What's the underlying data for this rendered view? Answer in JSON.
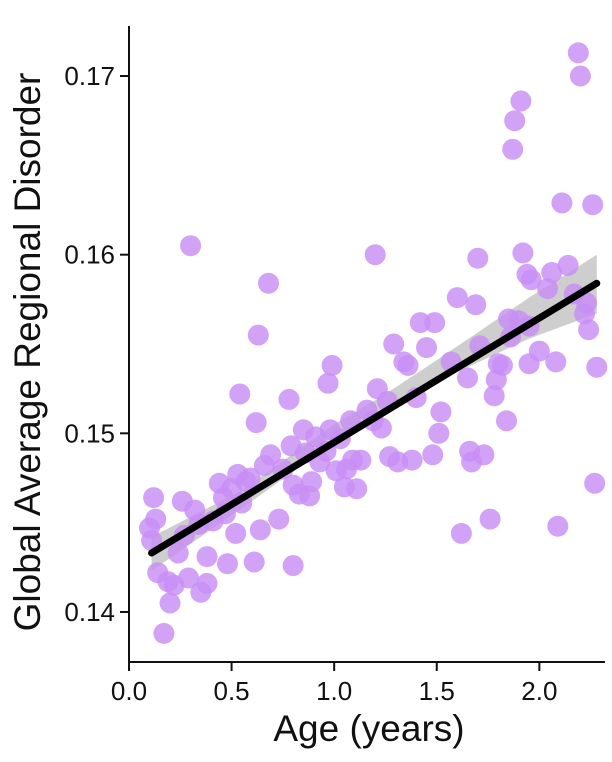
{
  "chart_data": {
    "type": "scatter",
    "xlabel": "Age (years)",
    "ylabel": "Global Average Regional Disorder",
    "xlim": [
      0.0,
      2.32
    ],
    "ylim": [
      0.1372,
      0.1728
    ],
    "x_ticks": [
      0.0,
      0.5,
      1.0,
      1.5,
      2.0
    ],
    "x_tick_labels": [
      "0.0",
      "0.5",
      "1.0",
      "1.5",
      "2.0"
    ],
    "y_ticks": [
      0.14,
      0.15,
      0.16,
      0.17
    ],
    "y_tick_labels": [
      "0.14",
      "0.15",
      "0.16",
      "0.17"
    ],
    "grid": false,
    "colors": {
      "points": "#c88ef5",
      "fit_line": "#000000",
      "confidence_band": "#bdbdbd"
    },
    "fit_line": {
      "x": [
        0.11,
        2.28
      ],
      "y": [
        0.1433,
        0.1584
      ]
    },
    "confidence_band": {
      "x": [
        0.11,
        0.55,
        1.0,
        1.25,
        1.5,
        1.95,
        2.28
      ],
      "lower": [
        0.1423,
        0.1458,
        0.1495,
        0.1514,
        0.1529,
        0.1553,
        0.1567
      ],
      "upper": [
        0.1442,
        0.1468,
        0.1505,
        0.1522,
        0.1541,
        0.1576,
        0.16
      ]
    },
    "points": [
      [
        0.1,
        0.1447
      ],
      [
        0.11,
        0.144
      ],
      [
        0.12,
        0.1464
      ],
      [
        0.13,
        0.1452
      ],
      [
        0.14,
        0.1422
      ],
      [
        0.17,
        0.1388
      ],
      [
        0.19,
        0.1417
      ],
      [
        0.2,
        0.1405
      ],
      [
        0.22,
        0.1415
      ],
      [
        0.24,
        0.1433
      ],
      [
        0.26,
        0.1462
      ],
      [
        0.27,
        0.1443
      ],
      [
        0.29,
        0.1419
      ],
      [
        0.3,
        0.1605
      ],
      [
        0.32,
        0.1457
      ],
      [
        0.34,
        0.1449
      ],
      [
        0.35,
        0.1411
      ],
      [
        0.38,
        0.1416
      ],
      [
        0.38,
        0.1431
      ],
      [
        0.41,
        0.1451
      ],
      [
        0.44,
        0.1472
      ],
      [
        0.46,
        0.1464
      ],
      [
        0.47,
        0.1455
      ],
      [
        0.48,
        0.1427
      ],
      [
        0.5,
        0.1469
      ],
      [
        0.52,
        0.1444
      ],
      [
        0.53,
        0.1477
      ],
      [
        0.54,
        0.1522
      ],
      [
        0.55,
        0.1461
      ],
      [
        0.57,
        0.1473
      ],
      [
        0.59,
        0.1475
      ],
      [
        0.61,
        0.1428
      ],
      [
        0.62,
        0.1506
      ],
      [
        0.63,
        0.1555
      ],
      [
        0.64,
        0.1446
      ],
      [
        0.66,
        0.1482
      ],
      [
        0.68,
        0.1584
      ],
      [
        0.69,
        0.1488
      ],
      [
        0.73,
        0.1452
      ],
      [
        0.75,
        0.148
      ],
      [
        0.78,
        0.1519
      ],
      [
        0.79,
        0.1493
      ],
      [
        0.8,
        0.1471
      ],
      [
        0.8,
        0.1426
      ],
      [
        0.83,
        0.1466
      ],
      [
        0.85,
        0.1502
      ],
      [
        0.86,
        0.1489
      ],
      [
        0.88,
        0.1465
      ],
      [
        0.89,
        0.1473
      ],
      [
        0.91,
        0.1498
      ],
      [
        0.93,
        0.1484
      ],
      [
        0.96,
        0.149
      ],
      [
        0.97,
        0.1528
      ],
      [
        0.98,
        0.1502
      ],
      [
        0.99,
        0.1538
      ],
      [
        1.01,
        0.1479
      ],
      [
        1.03,
        0.1497
      ],
      [
        1.05,
        0.147
      ],
      [
        1.06,
        0.148
      ],
      [
        1.08,
        0.1507
      ],
      [
        1.09,
        0.1485
      ],
      [
        1.11,
        0.1469
      ],
      [
        1.13,
        0.1485
      ],
      [
        1.16,
        0.1513
      ],
      [
        1.19,
        0.1507
      ],
      [
        1.2,
        0.16
      ],
      [
        1.21,
        0.1525
      ],
      [
        1.23,
        0.1503
      ],
      [
        1.26,
        0.1518
      ],
      [
        1.27,
        0.1487
      ],
      [
        1.29,
        0.155
      ],
      [
        1.31,
        0.1484
      ],
      [
        1.34,
        0.154
      ],
      [
        1.36,
        0.1538
      ],
      [
        1.38,
        0.1485
      ],
      [
        1.4,
        0.152
      ],
      [
        1.42,
        0.1562
      ],
      [
        1.45,
        0.1548
      ],
      [
        1.48,
        0.1488
      ],
      [
        1.49,
        0.1562
      ],
      [
        1.51,
        0.15
      ],
      [
        1.52,
        0.1512
      ],
      [
        1.57,
        0.154
      ],
      [
        1.6,
        0.1576
      ],
      [
        1.62,
        0.1444
      ],
      [
        1.65,
        0.1531
      ],
      [
        1.66,
        0.149
      ],
      [
        1.67,
        0.1484
      ],
      [
        1.69,
        0.1572
      ],
      [
        1.7,
        0.1598
      ],
      [
        1.71,
        0.1549
      ],
      [
        1.73,
        0.1488
      ],
      [
        1.76,
        0.1452
      ],
      [
        1.78,
        0.1521
      ],
      [
        1.79,
        0.153
      ],
      [
        1.8,
        0.1539
      ],
      [
        1.82,
        0.1538
      ],
      [
        1.84,
        0.1507
      ],
      [
        1.85,
        0.1564
      ],
      [
        1.86,
        0.1554
      ],
      [
        1.87,
        0.1659
      ],
      [
        1.88,
        0.1675
      ],
      [
        1.9,
        0.1563
      ],
      [
        1.91,
        0.1686
      ],
      [
        1.92,
        0.1601
      ],
      [
        1.94,
        0.1589
      ],
      [
        1.95,
        0.156
      ],
      [
        1.95,
        0.1539
      ],
      [
        1.96,
        0.1586
      ],
      [
        2.0,
        0.1546
      ],
      [
        2.04,
        0.1581
      ],
      [
        2.06,
        0.159
      ],
      [
        2.08,
        0.154
      ],
      [
        2.09,
        0.1448
      ],
      [
        2.11,
        0.1629
      ],
      [
        2.14,
        0.1594
      ],
      [
        2.17,
        0.1578
      ],
      [
        2.19,
        0.1713
      ],
      [
        2.2,
        0.17
      ],
      [
        2.22,
        0.1567
      ],
      [
        2.23,
        0.1573
      ],
      [
        2.24,
        0.1558
      ],
      [
        2.26,
        0.1628
      ],
      [
        2.27,
        0.1472
      ],
      [
        2.28,
        0.1537
      ]
    ]
  }
}
